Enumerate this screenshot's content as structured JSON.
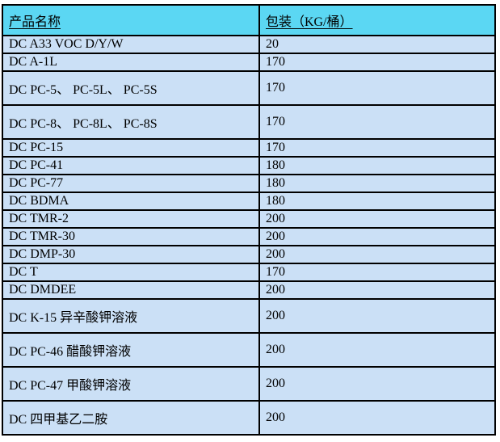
{
  "table": {
    "headers": [
      {
        "label": "产品名称"
      },
      {
        "label": "包装（KG/桶）"
      }
    ],
    "rows": [
      {
        "name": "DC A33 VOC D/Y/W",
        "package": "20",
        "tall": false
      },
      {
        "name": "DC A-1L",
        "package": "170",
        "tall": false
      },
      {
        "name": "DC PC-5、 PC-5L、 PC-5S",
        "package": "170",
        "tall": true
      },
      {
        "name": "DC PC-8、 PC-8L、 PC-8S",
        "package": "170",
        "tall": true
      },
      {
        "name": "DC PC-15",
        "package": "170",
        "tall": false
      },
      {
        "name": "DC PC-41",
        "package": "180",
        "tall": false
      },
      {
        "name": "DC PC-77",
        "package": "180",
        "tall": false
      },
      {
        "name": "DC BDMA",
        "package": "180",
        "tall": false
      },
      {
        "name": "DC TMR-2",
        "package": "200",
        "tall": false
      },
      {
        "name": "DC TMR-30",
        "package": "200",
        "tall": false
      },
      {
        "name": "DC DMP-30",
        "package": "200",
        "tall": false
      },
      {
        "name": "DC T",
        "package": "170",
        "tall": false
      },
      {
        "name": "DC DMDEE",
        "package": "200",
        "tall": false
      },
      {
        "name": "DC K-15 异辛酸钾溶液",
        "package": "200",
        "tall": true
      },
      {
        "name": "DC PC-46 醋酸钾溶液",
        "package": "200",
        "tall": true
      },
      {
        "name": "DC PC-47 甲酸钾溶液",
        "package": "200",
        "tall": true
      },
      {
        "name": "DC  四甲基乙二胺",
        "package": "200",
        "tall": true
      }
    ],
    "colors": {
      "header_bg": "#5bd7f3",
      "row_bg": "#cbe0f6",
      "border": "#000000"
    }
  }
}
